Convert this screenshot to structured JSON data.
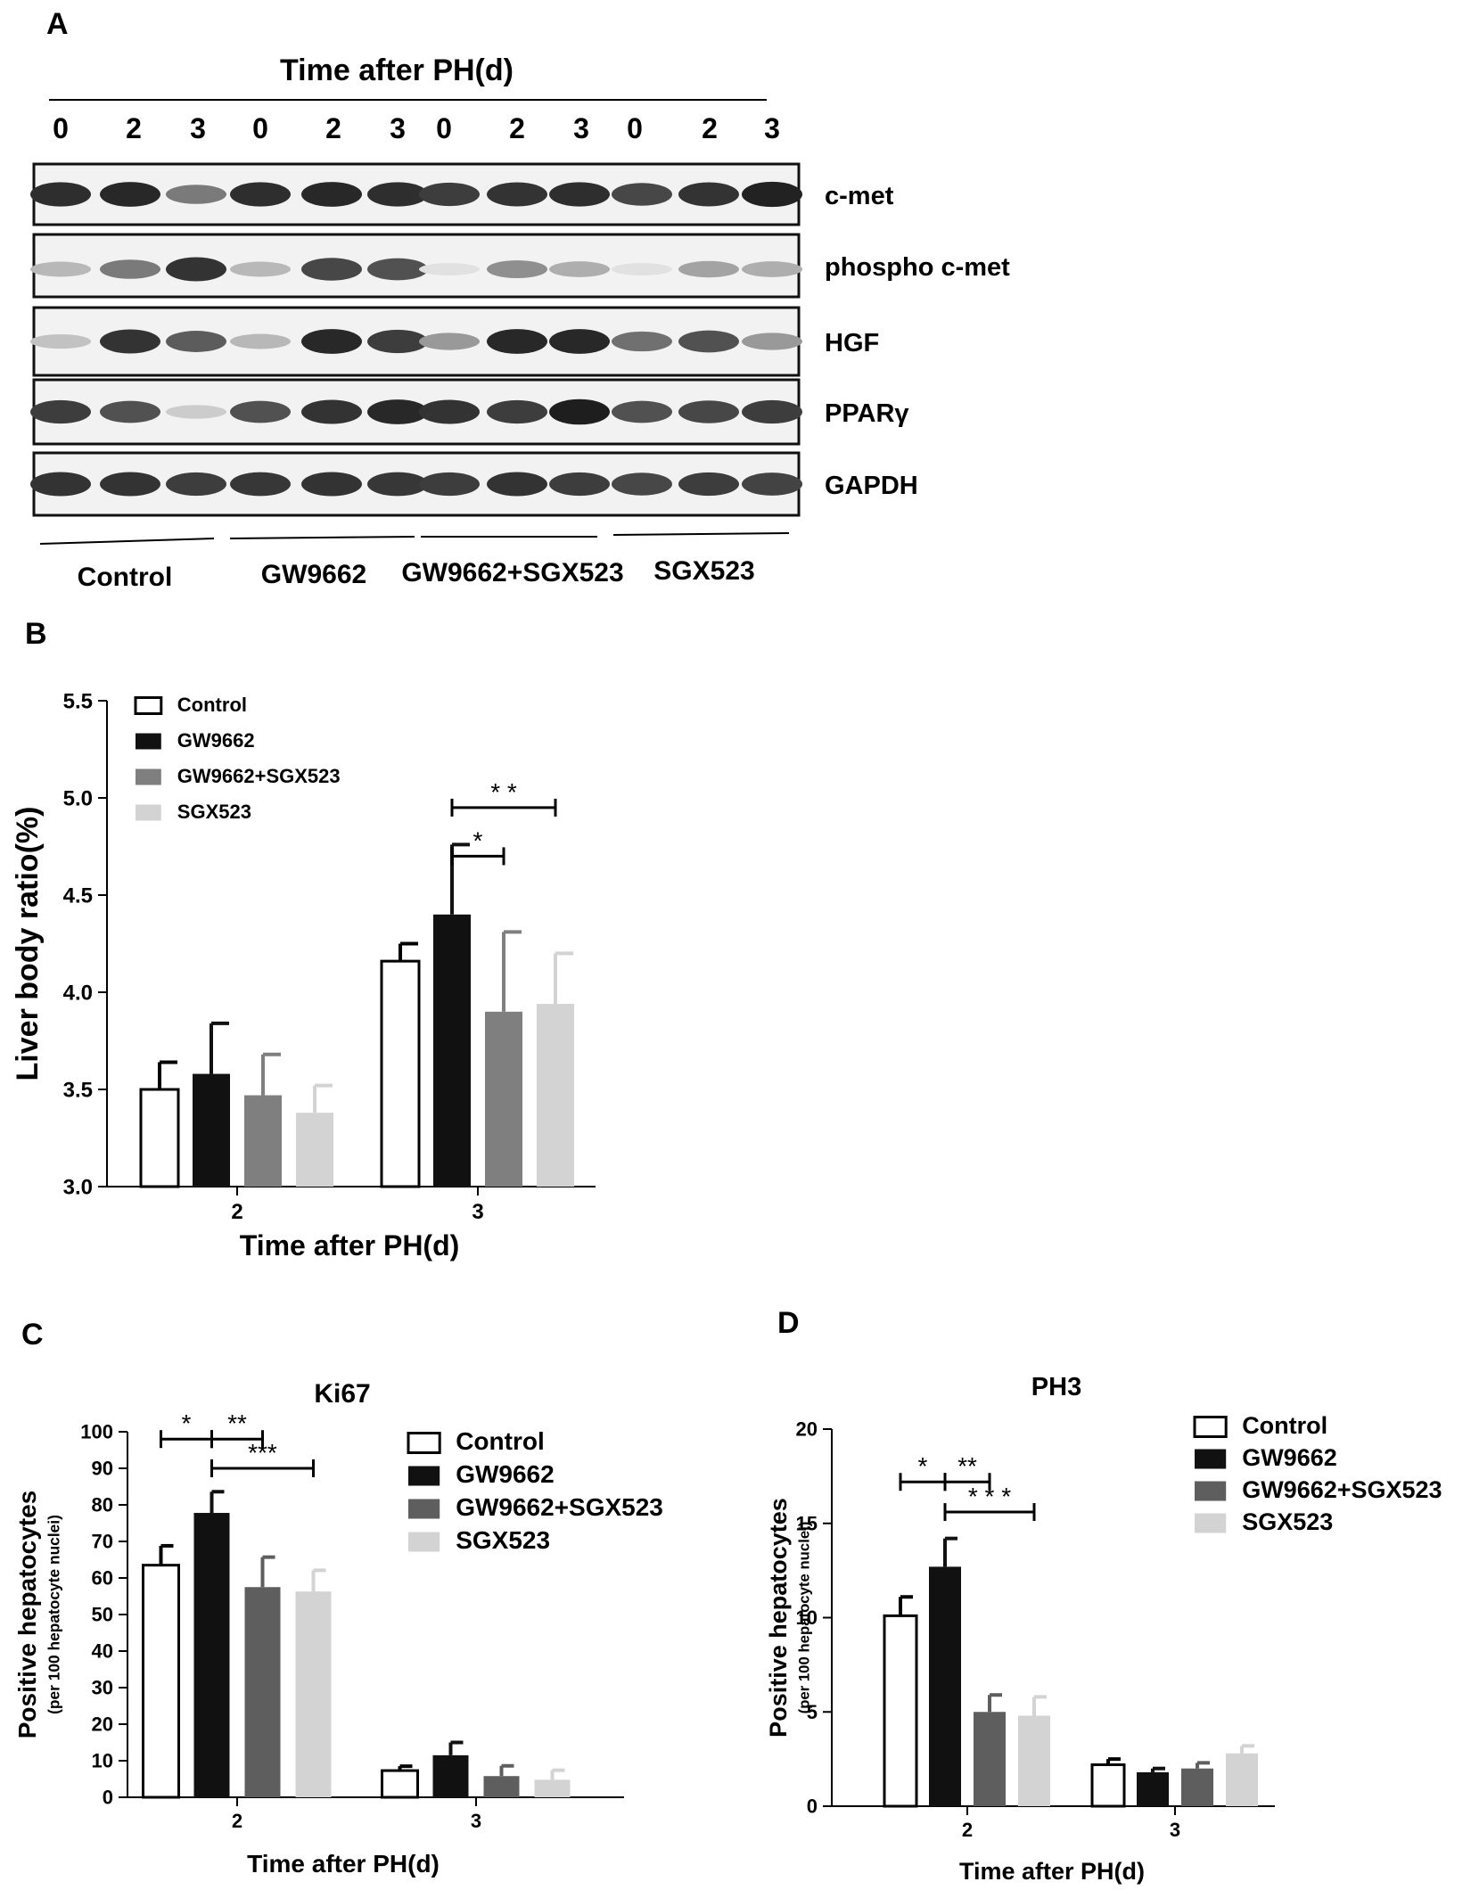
{
  "colors": {
    "Control": "#ffffff",
    "GW9662": "#111111",
    "GW9662+SGX523": "#7f7f7f",
    "SGX523": "#d3d3d3",
    "GW9662+SGX523 (C,D)": "#5e5e5e"
  },
  "panel_a": {
    "letter": "A",
    "header": "Time after PH(d)",
    "lanes": [
      "0",
      "2",
      "3",
      "0",
      "2",
      "3",
      "0",
      "2",
      "3",
      "0",
      "2",
      "3"
    ],
    "blots": [
      {
        "label": "c-met",
        "intensity": [
          0.92,
          0.95,
          0.55,
          0.92,
          0.95,
          0.92,
          0.85,
          0.9,
          0.92,
          0.8,
          0.9,
          0.98
        ]
      },
      {
        "label": "phospho c-met",
        "intensity": [
          0.25,
          0.55,
          0.9,
          0.25,
          0.8,
          0.75,
          0.05,
          0.45,
          0.3,
          0.05,
          0.35,
          0.3
        ]
      },
      {
        "label": "HGF",
        "intensity": [
          0.2,
          0.9,
          0.7,
          0.25,
          0.95,
          0.85,
          0.4,
          0.95,
          0.95,
          0.6,
          0.75,
          0.4
        ]
      },
      {
        "label": "PPARγ",
        "intensity": [
          0.85,
          0.75,
          0.15,
          0.75,
          0.9,
          0.95,
          0.9,
          0.85,
          1.0,
          0.75,
          0.8,
          0.85
        ]
      },
      {
        "label": "GAPDH",
        "intensity": [
          0.9,
          0.9,
          0.85,
          0.88,
          0.9,
          0.88,
          0.85,
          0.9,
          0.85,
          0.8,
          0.85,
          0.82
        ]
      }
    ],
    "groups": [
      "Control",
      "GW9662",
      "GW9662+SGX523",
      "SGX523"
    ]
  },
  "chart_data": [
    {
      "type": "bar",
      "panel": "B",
      "title": "",
      "xlabel": "Time after PH(d)",
      "ylabel": "Liver body ratio(%)",
      "ylim": [
        3.0,
        5.5
      ],
      "yticks": [
        "3.0",
        "3.5",
        "4.0",
        "4.5",
        "5.0",
        "5.5"
      ],
      "categories": [
        "2",
        "3"
      ],
      "series": [
        {
          "name": "Control",
          "values": [
            3.5,
            4.16
          ],
          "errors": [
            0.14,
            0.09
          ]
        },
        {
          "name": "GW9662",
          "values": [
            3.58,
            4.4
          ],
          "errors": [
            0.26,
            0.36
          ]
        },
        {
          "name": "GW9662+SGX523",
          "values": [
            3.47,
            3.9
          ],
          "errors": [
            0.21,
            0.41
          ]
        },
        {
          "name": "SGX523",
          "values": [
            3.38,
            3.94
          ],
          "errors": [
            0.14,
            0.26
          ]
        }
      ],
      "legend": "top-left",
      "significance": [
        {
          "category": "3",
          "from": "GW9662",
          "to": "GW9662+SGX523",
          "label": "*",
          "y": 4.7
        },
        {
          "category": "3",
          "from": "GW9662",
          "to": "SGX523",
          "label": "* *",
          "y": 4.95
        }
      ]
    },
    {
      "type": "bar",
      "panel": "C",
      "title": "Ki67",
      "xlabel": "Time after PH(d)",
      "ylabel": "Positive hepatocytes",
      "ylabel2": "(per 100 hepatocyte nuclei)",
      "ylim": [
        0,
        100
      ],
      "yticks": [
        "0",
        "10",
        "20",
        "30",
        "40",
        "50",
        "60",
        "70",
        "80",
        "90",
        "100"
      ],
      "categories": [
        "2",
        "3"
      ],
      "series": [
        {
          "name": "Control",
          "values": [
            63.5,
            7.3
          ],
          "errors": [
            5.3,
            1.2
          ]
        },
        {
          "name": "GW9662",
          "values": [
            77.8,
            11.5
          ],
          "errors": [
            5.8,
            3.5
          ]
        },
        {
          "name": "GW9662+SGX523",
          "values": [
            57.5,
            5.8
          ],
          "errors": [
            8.2,
            2.8
          ]
        },
        {
          "name": "SGX523",
          "values": [
            56.3,
            4.8
          ],
          "errors": [
            5.8,
            2.6
          ]
        }
      ],
      "legend": "top-right",
      "significance": [
        {
          "category": "2",
          "from": "Control",
          "to": "GW9662",
          "label": "*",
          "y": 98
        },
        {
          "category": "2",
          "from": "GW9662",
          "to": "GW9662+SGX523",
          "label": "**",
          "y": 98
        },
        {
          "category": "2",
          "from": "GW9662",
          "to": "SGX523",
          "label": "***",
          "y": 90
        }
      ]
    },
    {
      "type": "bar",
      "panel": "D",
      "title": "PH3",
      "xlabel": "Time after PH(d)",
      "ylabel": "Positive hepatocytes",
      "ylabel2": "(per 100 hepatocyte nuclei)",
      "ylim": [
        0,
        20
      ],
      "yticks": [
        "0",
        "5",
        "10",
        "15",
        "20"
      ],
      "categories": [
        "2",
        "3"
      ],
      "series": [
        {
          "name": "Control",
          "values": [
            10.1,
            2.2
          ],
          "errors": [
            1.0,
            0.3
          ]
        },
        {
          "name": "GW9662",
          "values": [
            12.7,
            1.8
          ],
          "errors": [
            1.5,
            0.2
          ]
        },
        {
          "name": "GW9662+SGX523",
          "values": [
            5.0,
            2.0
          ],
          "errors": [
            0.9,
            0.3
          ]
        },
        {
          "name": "SGX523",
          "values": [
            4.8,
            2.8
          ],
          "errors": [
            1.0,
            0.4
          ]
        }
      ],
      "legend": "top-right",
      "significance": [
        {
          "category": "2",
          "from": "Control",
          "to": "GW9662",
          "label": "*",
          "y": 17.2
        },
        {
          "category": "2",
          "from": "GW9662",
          "to": "GW9662+SGX523",
          "label": "**",
          "y": 17.2
        },
        {
          "category": "2",
          "from": "GW9662",
          "to": "SGX523",
          "label": "* * *",
          "y": 15.6
        }
      ]
    }
  ]
}
